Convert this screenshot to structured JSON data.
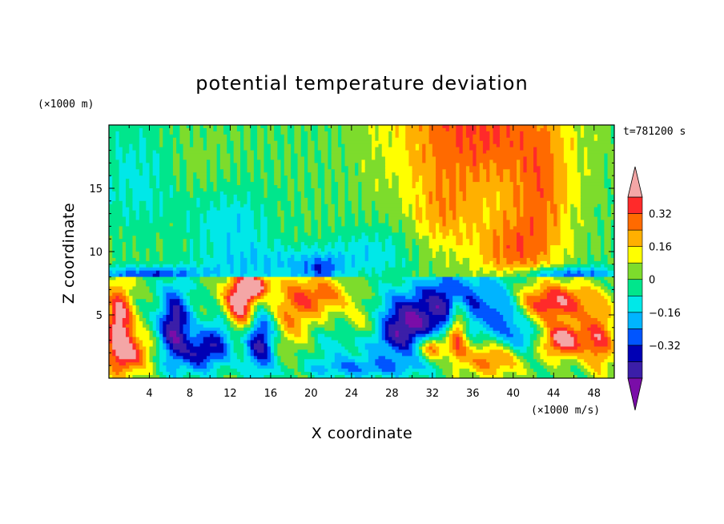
{
  "chart_data": {
    "type": "heatmap",
    "title": "potential temperature deviation",
    "xlabel": "X coordinate",
    "ylabel": "Z coordinate",
    "x_units": "(×1000 m/s)",
    "y_units": "(×1000 m)",
    "time_label": "t=781200 s",
    "xlim": [
      0,
      50
    ],
    "ylim": [
      0,
      20
    ],
    "x_ticks": [
      4,
      8,
      12,
      16,
      20,
      24,
      28,
      32,
      36,
      40,
      44,
      48
    ],
    "y_ticks": [
      5,
      10,
      15
    ],
    "colorbar": {
      "levels": [
        -0.48,
        -0.4,
        -0.32,
        -0.24,
        -0.16,
        -0.08,
        0,
        0.08,
        0.16,
        0.24,
        0.32,
        0.4
      ],
      "colors": [
        "#7a0da8",
        "#3b1ea8",
        "#0000b4",
        "#0055ff",
        "#00b4ff",
        "#00e8e8",
        "#00e68c",
        "#7ddc2c",
        "#ffff00",
        "#ffb000",
        "#ff6a00",
        "#ff2a2a",
        "#f4a6a6"
      ],
      "tick_labels": [
        "0.32",
        "0.16",
        "0",
        "−0.16",
        "−0.32"
      ],
      "tick_values": [
        0.32,
        0.16,
        0,
        -0.16,
        -0.32
      ],
      "extend": "both"
    }
  }
}
